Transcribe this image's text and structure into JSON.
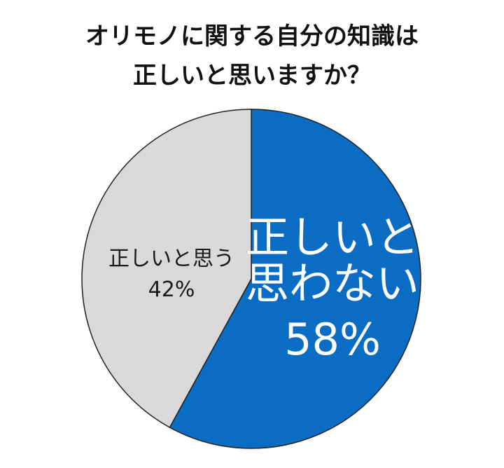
{
  "chart_data": {
    "type": "pie",
    "title": [
      "オリモノに関する自分の知識は",
      "正しいと思いますか？"
    ],
    "categories": [
      "正しいと思わない",
      "正しいと思う"
    ],
    "values": [
      58,
      42
    ],
    "value_labels": [
      "58%",
      "42%"
    ],
    "colors": [
      "#0b6cc4",
      "#d9d9d9"
    ],
    "label_colors": [
      "#ffffff",
      "#1a1a1a"
    ]
  }
}
